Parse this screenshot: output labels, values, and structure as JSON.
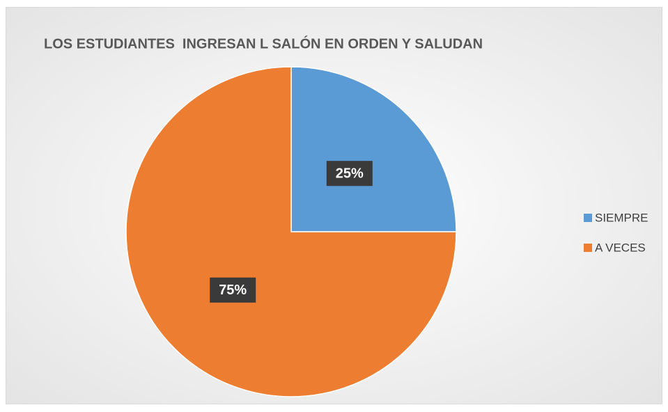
{
  "chart_data": {
    "type": "pie",
    "title": "LOS ESTUDIANTES  INGRESAN L SALÓN EN ORDEN Y SALUDAN",
    "categories": [
      "SIEMPRE",
      "A VECES"
    ],
    "values": [
      25,
      75
    ],
    "value_labels": [
      "25%",
      "75%"
    ],
    "colors": [
      "#5b9bd5",
      "#ed7d31"
    ],
    "legend": "right"
  }
}
